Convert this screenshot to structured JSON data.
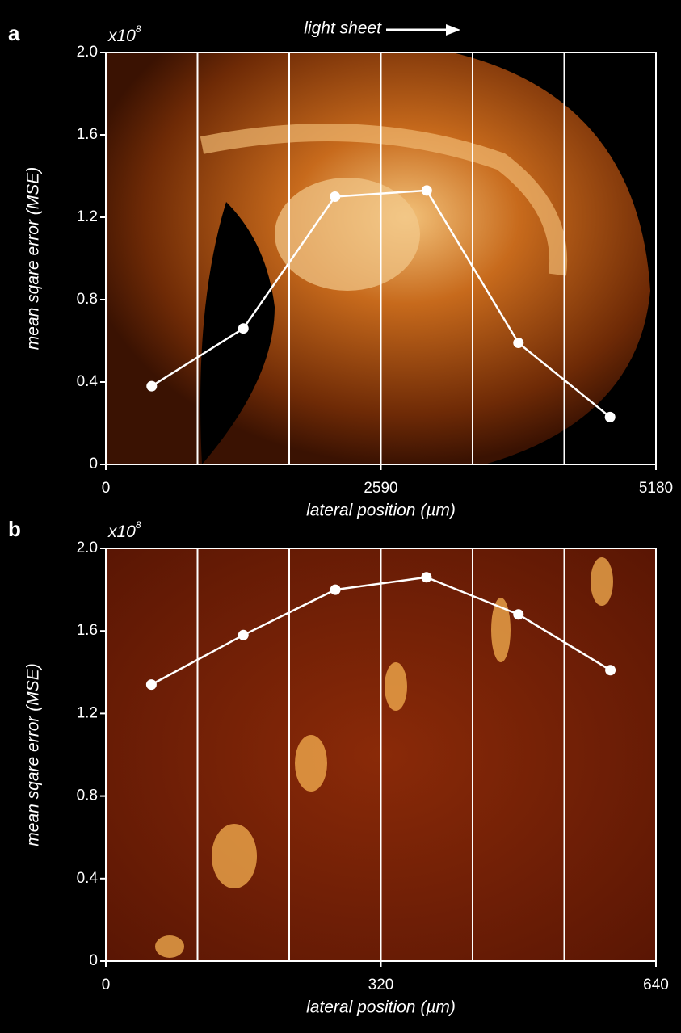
{
  "chart_data": [
    {
      "type": "line",
      "panel_label": "a",
      "y_scale_label": "x10",
      "y_scale_exponent": "8",
      "annotation": "light sheet",
      "xlabel": "lateral position (µm)",
      "ylabel": "mean sqare error (MSE)",
      "x": [
        432,
        1295,
        2158,
        3022,
        3885,
        4748
      ],
      "values": [
        0.38,
        0.66,
        1.3,
        1.33,
        0.59,
        0.23
      ],
      "color": "#ffffff",
      "xlim": [
        0,
        5180
      ],
      "xticks": [
        0,
        2590,
        5180
      ],
      "ylim": [
        0,
        2
      ],
      "yticks": [
        0,
        0.4,
        0.8,
        1.2,
        1.6,
        {
          "value": 2,
          "label": "2.0"
        }
      ]
    },
    {
      "type": "line",
      "panel_label": "b",
      "y_scale_label": "x10",
      "y_scale_exponent": "8",
      "xlabel": "lateral position (µm)",
      "ylabel": "mean sqare error (MSE)",
      "x": [
        53,
        160,
        267,
        373,
        480,
        587
      ],
      "values": [
        1.34,
        1.58,
        1.8,
        1.86,
        1.68,
        1.41
      ],
      "color": "#ffffff",
      "xlim": [
        0,
        640
      ],
      "xticks": [
        0,
        320,
        640
      ],
      "ylim": [
        0,
        2
      ],
      "yticks": [
        0,
        0.4,
        0.8,
        1.2,
        1.6,
        {
          "value": 2,
          "label": "2.0"
        }
      ]
    }
  ]
}
